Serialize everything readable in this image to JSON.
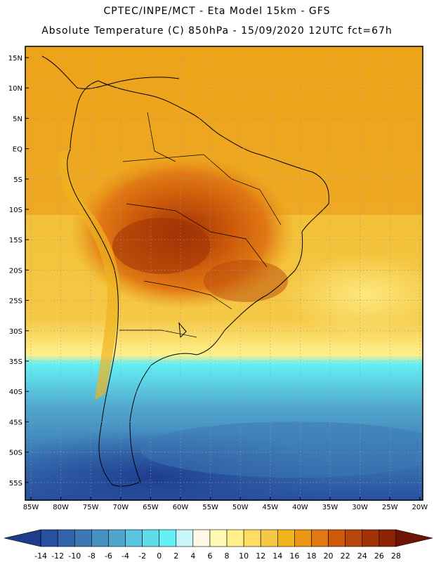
{
  "header": {
    "line1": "CPTEC/INPE/MCT -  Eta Model 15km - GFS",
    "line2": "Absolute Temperature (C) 850hPa - 15/09/2020 12UTC fct=67h"
  },
  "axes": {
    "lat_labels": [
      "15N",
      "10N",
      "5N",
      "EQ",
      "5S",
      "10S",
      "15S",
      "20S",
      "25S",
      "30S",
      "35S",
      "40S",
      "45S",
      "50S",
      "55S"
    ],
    "lon_labels": [
      "85W",
      "80W",
      "75W",
      "70W",
      "65W",
      "60W",
      "55W",
      "50W",
      "45W",
      "40W",
      "35W",
      "30W",
      "25W",
      "20W"
    ]
  },
  "colorbar": {
    "labels": [
      "-14",
      "-12",
      "-10",
      "-8",
      "-6",
      "-4",
      "-2",
      "0",
      "2",
      "4",
      "6",
      "8",
      "10",
      "12",
      "14",
      "16",
      "18",
      "20",
      "22",
      "24",
      "26",
      "28"
    ],
    "colors": [
      "#1e3c8c",
      "#2850a0",
      "#3264aa",
      "#3c78b4",
      "#4690c3",
      "#50a5cd",
      "#5ac3df",
      "#5fdcea",
      "#64f0f5",
      "#c8f5fa",
      "#fff8e6",
      "#fffab4",
      "#fff08c",
      "#ffdc64",
      "#f5c846",
      "#f0b41e",
      "#eb9614",
      "#e17814",
      "#cd5a0a",
      "#b9460a",
      "#a03205",
      "#8c2305",
      "#6e1405"
    ]
  }
}
